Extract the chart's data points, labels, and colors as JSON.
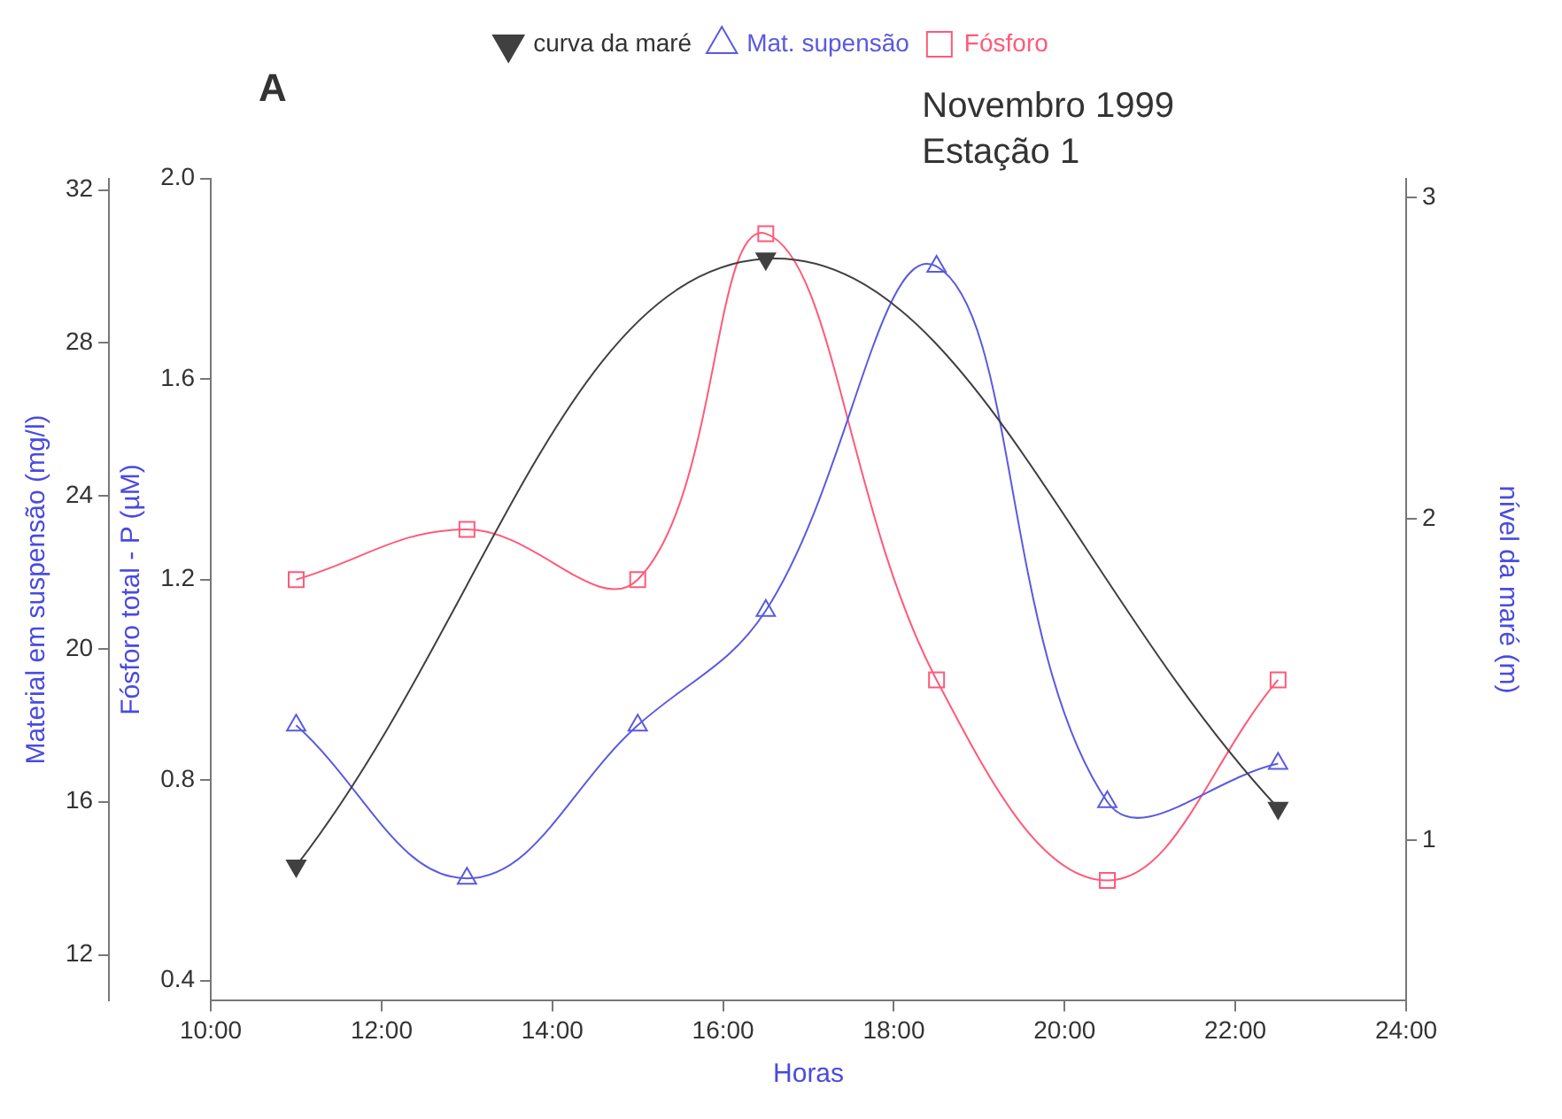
{
  "chart_data": {
    "type": "line",
    "title": "Novembro 1999",
    "subtitle": "Estação 1",
    "annotations": [
      "A"
    ],
    "xlabel": "Horas",
    "ylabel": "Fósforo total - P (µM)",
    "y2label": "nível da maré (m)",
    "y3label": "Material em suspensão (mg/l)",
    "x": [
      11,
      13,
      15,
      16.5,
      18.5,
      20.5,
      22.5
    ],
    "xlim": [
      10,
      24
    ],
    "xticks": [
      {
        "value": 10,
        "label": "10:00"
      },
      {
        "value": 12,
        "label": "12:00"
      },
      {
        "value": 14,
        "label": "14:00"
      },
      {
        "value": 16,
        "label": "16:00"
      },
      {
        "value": 18,
        "label": "18:00"
      },
      {
        "value": 20,
        "label": "20:00"
      },
      {
        "value": 22,
        "label": "22:00"
      },
      {
        "value": 24,
        "label": "24:00"
      }
    ],
    "ylim": [
      0.36,
      2.0
    ],
    "yticks": [
      0.4,
      0.8,
      1.2,
      1.6,
      {
        "value": 2,
        "label": "2.0"
      }
    ],
    "y2lim": [
      0.5,
      3.06
    ],
    "y2ticks": [
      1,
      2,
      3
    ],
    "y3lim": [
      10.8,
      32.3
    ],
    "y3ticks": [
      12,
      16,
      20,
      24,
      28,
      32
    ],
    "series": [
      {
        "name": "curva da maré",
        "color": "#404040",
        "type": "line",
        "axis": "y2",
        "marker": "triangle",
        "x": [
          11,
          16.5,
          22.5
        ],
        "values": [
          0.92,
          2.81,
          1.1
        ]
      },
      {
        "name": "Mat. supensão",
        "color": "#5a5ae0",
        "type": "line",
        "axis": "y3",
        "marker": "triangle",
        "values": [
          18,
          14,
          18,
          21,
          30,
          16,
          17
        ]
      },
      {
        "name": "Fósforo",
        "color": "#ff5a78",
        "type": "line",
        "axis": "y",
        "marker": "square",
        "values": [
          1.2,
          1.3,
          1.2,
          1.89,
          1.0,
          0.6,
          1.0
        ]
      }
    ],
    "grid": false,
    "legend": "top",
    "line_style": "solid"
  }
}
